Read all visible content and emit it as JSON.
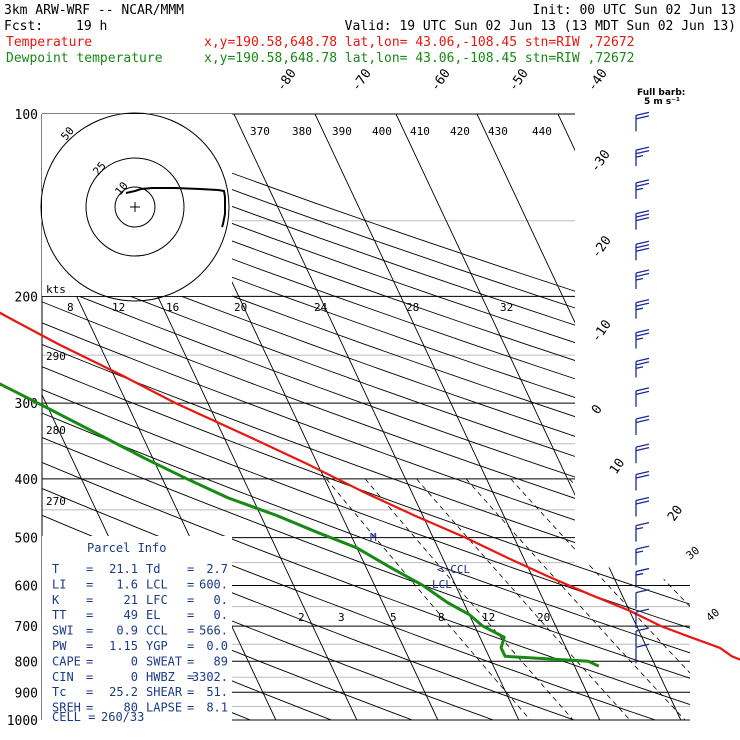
{
  "header": {
    "model": "3km ARW-WRF -- NCAR/MMM",
    "init": "Init: 00 UTC Sun 02 Jun 13",
    "fcst_label": "Fcst:",
    "fcst_value": "19 h",
    "valid": "Valid: 19 UTC Sun 02 Jun 13 (13 MDT Sun 02 Jun 13)",
    "temp_label": "Temperature",
    "dew_label": "Dewpoint temperature",
    "location": "x,y=190.58,648.78   lat,lon= 43.06,-108.45  stn=RIW ,72672",
    "barb_title": "Full barb:",
    "barb_unit": "5 m s⁻¹"
  },
  "colors": {
    "temperature": "#e8170f",
    "dewpoint": "#178a14",
    "parcel_text": "#1a3a8a",
    "wind_barb": "#1a2a9a"
  },
  "chart_data": {
    "type": "line",
    "subtype": "skew-T log-P sounding",
    "yaxis_label": "pressure",
    "pressure_ticks": [
      100,
      200,
      300,
      400,
      500,
      600,
      700,
      800,
      900,
      1000
    ],
    "pressure_range": [
      100,
      1000
    ],
    "log_scale": true,
    "isotherm_labels": [
      "-80",
      "-70",
      "-60",
      "-50",
      "-40",
      "-30",
      "-20",
      "-10",
      "0",
      "10",
      "20",
      "30",
      "40"
    ],
    "theta_labels": [
      "370",
      "380",
      "390",
      "400",
      "410",
      "420",
      "430",
      "440"
    ],
    "mixing_ratio_labels": [
      "8",
      "12",
      "16",
      "20",
      "24",
      "28",
      "32"
    ],
    "lower_mixing_labels": [
      "2",
      "3",
      "5",
      "8",
      "12",
      "20"
    ],
    "dry_adiabat_labels": [
      "290",
      "280",
      "270"
    ],
    "hodograph": {
      "unit_label": "kts",
      "ring_labels": [
        "50",
        "25",
        "10"
      ]
    },
    "series": [
      {
        "name": "Temperature",
        "pressure": [
          810,
          785,
          760,
          730,
          700,
          660,
          620,
          580,
          540,
          500,
          460,
          420,
          380,
          340,
          300,
          270,
          240,
          215,
          200,
          185,
          170,
          160,
          150,
          140,
          130,
          120,
          110,
          102
        ],
        "temperature": [
          22,
          20,
          19,
          16,
          13,
          10,
          6,
          2,
          -2,
          -6,
          -11,
          -16,
          -21,
          -27,
          -34,
          -39,
          -45,
          -50,
          -53,
          -55,
          -53,
          -49,
          -46,
          -45,
          -44,
          -43,
          -43,
          -42
        ]
      },
      {
        "name": "Dewpoint temperature",
        "pressure": [
          815,
          800,
          785,
          760,
          730,
          700,
          670,
          640,
          600,
          560,
          520,
          490,
          460,
          430,
          400,
          370,
          340,
          300,
          260,
          230,
          200,
          170,
          140,
          120,
          110,
          101
        ],
        "temperature": [
          3,
          2,
          -8,
          -8,
          -7,
          -9,
          -10,
          -12,
          -14,
          -17,
          -20,
          -24,
          -28,
          -33,
          -37,
          -41,
          -45,
          -51,
          -58,
          -63,
          -68,
          -72,
          -77,
          -80,
          -81,
          -82
        ]
      }
    ],
    "annotations": {
      "ccl": "<-CCL",
      "lcl": "LCL",
      "m": "M"
    },
    "isobar_right_labels": [
      "30",
      "40"
    ],
    "wind_profile": [
      {
        "pressure": 106,
        "speed": 20
      },
      {
        "pressure": 121,
        "speed": 25
      },
      {
        "pressure": 137,
        "speed": 25
      },
      {
        "pressure": 154,
        "speed": 30
      },
      {
        "pressure": 173,
        "speed": 30
      },
      {
        "pressure": 193,
        "speed": 25
      },
      {
        "pressure": 216,
        "speed": 25
      },
      {
        "pressure": 242,
        "speed": 25
      },
      {
        "pressure": 270,
        "speed": 25
      },
      {
        "pressure": 302,
        "speed": 20
      },
      {
        "pressure": 336,
        "speed": 20
      },
      {
        "pressure": 374,
        "speed": 20
      },
      {
        "pressure": 415,
        "speed": 20
      },
      {
        "pressure": 458,
        "speed": 20
      },
      {
        "pressure": 504,
        "speed": 15
      },
      {
        "pressure": 551,
        "speed": 15
      },
      {
        "pressure": 600,
        "speed": 15
      },
      {
        "pressure": 650,
        "speed": 10
      },
      {
        "pressure": 700,
        "speed": 10
      },
      {
        "pressure": 752,
        "speed": 10
      },
      {
        "pressure": 800,
        "speed": 10
      }
    ]
  },
  "parcel_info": {
    "title": "Parcel Info",
    "rows": [
      {
        "k1": "T",
        "v1": "21.1",
        "k2": "Td",
        "v2": "2.7"
      },
      {
        "k1": "LI",
        "v1": "1.6",
        "k2": "LCL",
        "v2": "600."
      },
      {
        "k1": "K",
        "v1": "21",
        "k2": "LFC",
        "v2": "0."
      },
      {
        "k1": "TT",
        "v1": "49",
        "k2": "EL",
        "v2": "0."
      },
      {
        "k1": "SWI",
        "v1": "0.9",
        "k2": "CCL",
        "v2": "566."
      },
      {
        "k1": "PW",
        "v1": "1.15",
        "k2": "YGP",
        "v2": "0.0"
      },
      {
        "k1": "CAPE",
        "v1": "0",
        "k2": "SWEAT",
        "v2": "89"
      },
      {
        "k1": "CIN",
        "v1": "0",
        "k2": "HWBZ",
        "v2": "3302."
      },
      {
        "k1": "Tc",
        "v1": "25.2",
        "k2": "SHEAR",
        "v2": "51."
      },
      {
        "k1": "SREH",
        "v1": "80",
        "k2": "LAPSE",
        "v2": "8.1"
      }
    ],
    "cell_label": "CELL =",
    "cell_value": "260/33"
  }
}
